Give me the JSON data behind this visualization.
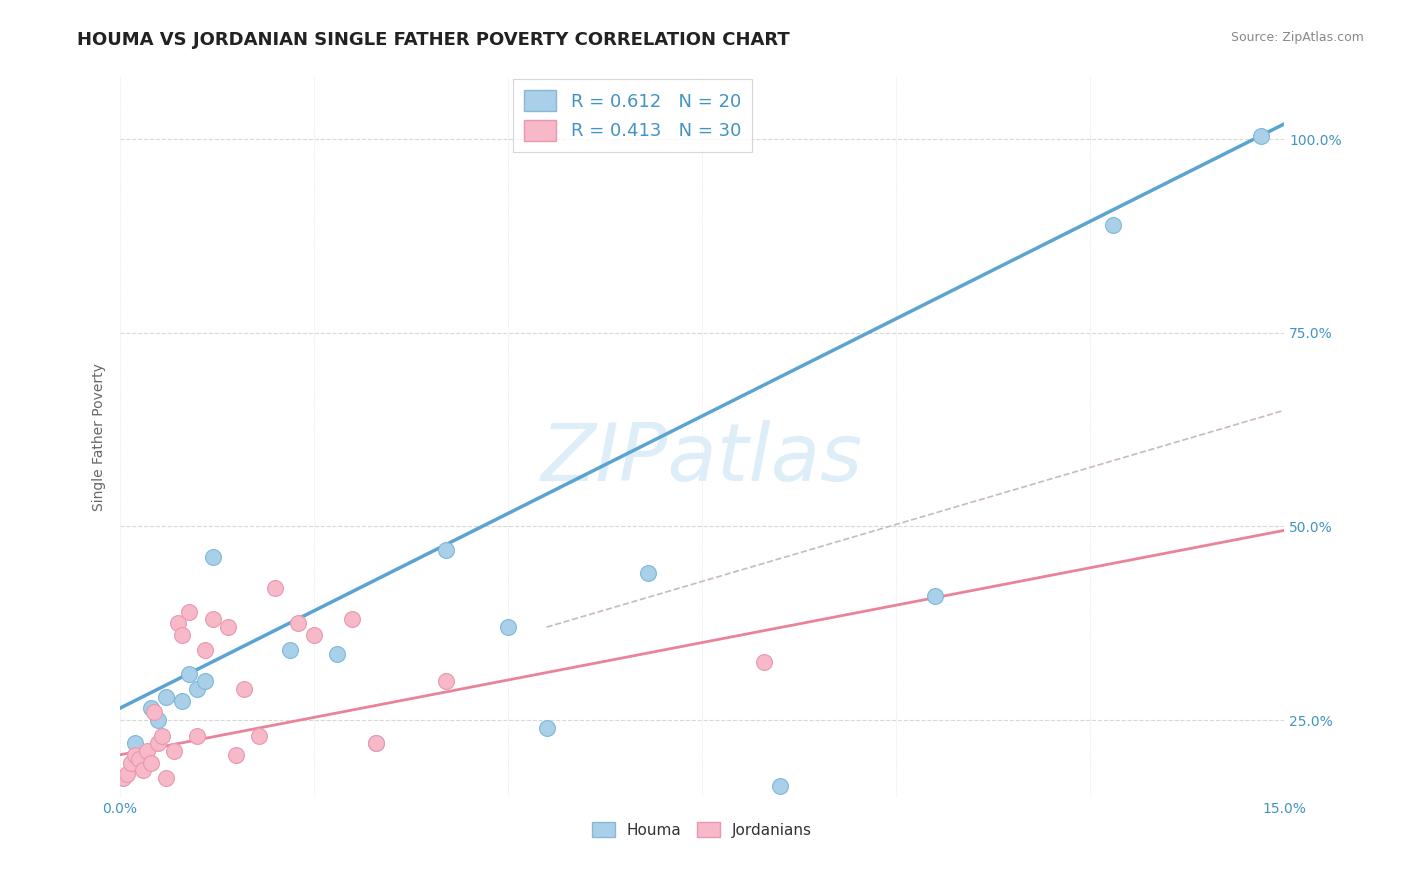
{
  "title": "HOUMA VS JORDANIAN SINGLE FATHER POVERTY CORRELATION CHART",
  "source": "Source: ZipAtlas.com",
  "ylabel": "Single Father Poverty",
  "xlim": [
    0.0,
    15.0
  ],
  "ylim": [
    15.0,
    108.0
  ],
  "xticks": [
    0.0,
    2.5,
    5.0,
    7.5,
    10.0,
    12.5,
    15.0
  ],
  "xtick_labels": [
    "0.0%",
    "",
    "",
    "",
    "",
    "",
    "15.0%"
  ],
  "yticks": [
    25.0,
    50.0,
    75.0,
    100.0
  ],
  "ytick_labels": [
    "25.0%",
    "50.0%",
    "75.0%",
    "100.0%"
  ],
  "houma_R": 0.612,
  "houma_N": 20,
  "jordan_R": 0.413,
  "jordan_N": 30,
  "houma_color": "#aacfe8",
  "jordan_color": "#f7b8c8",
  "houma_line_color": "#5ba3d0",
  "jordan_line_color": "#e8849a",
  "diagonal_line_color": "#c8b8c8",
  "grid_color": "#d8d8d8",
  "watermark_color": "#ddeef8",
  "houma_x": [
    0.2,
    0.4,
    0.5,
    0.6,
    0.8,
    0.9,
    1.0,
    1.1,
    1.2,
    2.2,
    2.8,
    3.3,
    4.2,
    5.0,
    5.5,
    6.8,
    8.5,
    10.5,
    12.8,
    14.7
  ],
  "houma_y": [
    22.0,
    26.5,
    25.0,
    28.0,
    27.5,
    31.0,
    29.0,
    30.0,
    46.0,
    34.0,
    33.5,
    22.0,
    47.0,
    37.0,
    24.0,
    44.0,
    16.5,
    41.0,
    89.0,
    100.5
  ],
  "jordan_x": [
    0.05,
    0.1,
    0.15,
    0.2,
    0.25,
    0.3,
    0.35,
    0.4,
    0.45,
    0.5,
    0.55,
    0.6,
    0.7,
    0.75,
    0.8,
    0.9,
    1.0,
    1.1,
    1.2,
    1.4,
    1.5,
    1.6,
    1.8,
    2.0,
    2.3,
    2.5,
    3.0,
    3.3,
    4.2,
    8.3
  ],
  "jordan_y": [
    17.5,
    18.0,
    19.5,
    20.5,
    20.0,
    18.5,
    21.0,
    19.5,
    26.0,
    22.0,
    23.0,
    17.5,
    21.0,
    37.5,
    36.0,
    39.0,
    23.0,
    34.0,
    38.0,
    37.0,
    20.5,
    29.0,
    23.0,
    42.0,
    37.5,
    36.0,
    38.0,
    22.0,
    30.0,
    32.5
  ],
  "houma_trend_x": [
    0.0,
    15.0
  ],
  "houma_trend_y": [
    26.5,
    102.0
  ],
  "jordan_trend_x": [
    0.0,
    15.0
  ],
  "jordan_trend_y": [
    20.5,
    49.5
  ],
  "diag_trend_x": [
    5.5,
    15.0
  ],
  "diag_trend_y": [
    37.0,
    65.0
  ],
  "title_fontsize": 13,
  "tick_label_color": "#4393c3",
  "axis_label_color": "#666666"
}
